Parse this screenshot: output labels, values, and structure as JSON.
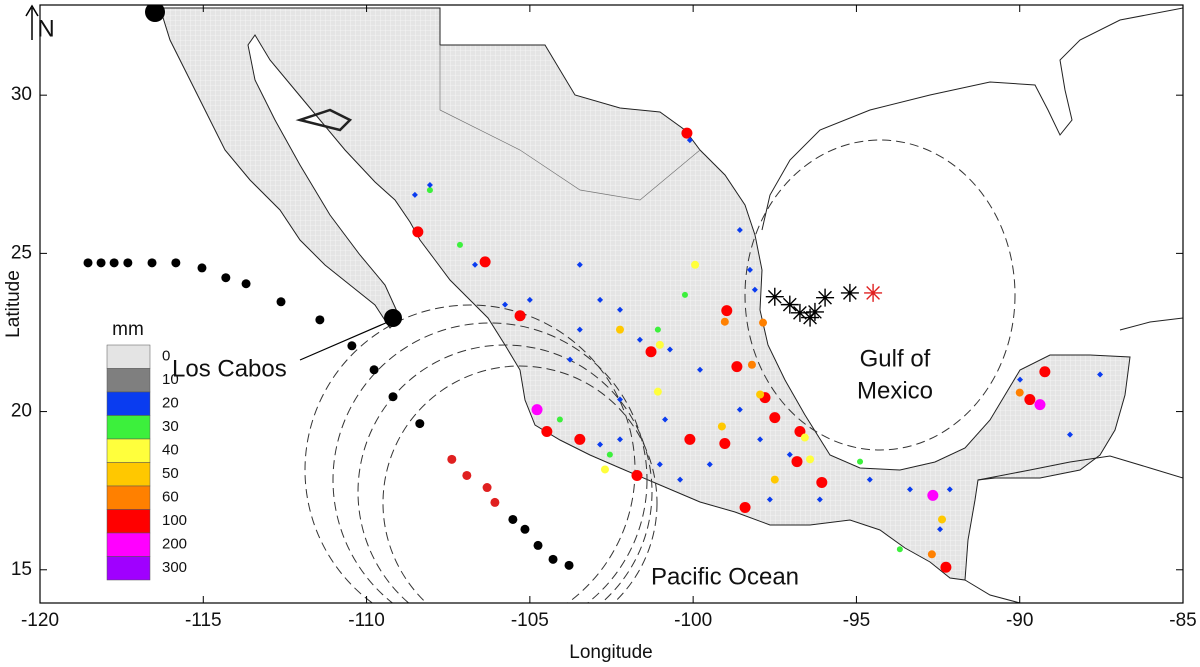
{
  "chart_data": {
    "type": "scatter",
    "x_label": "Longitude",
    "y_label": "Latitude",
    "north": "N",
    "xlim": [
      -120,
      -85
    ],
    "ylim": [
      13.95,
      32.85
    ],
    "xticks": [
      -120,
      -115,
      -110,
      -105,
      -100,
      -95,
      -90,
      -85
    ],
    "yticks": [
      15,
      20,
      25,
      30
    ],
    "legend": {
      "title": "mm",
      "levels": [
        0,
        10,
        20,
        30,
        40,
        50,
        60,
        100,
        200,
        300
      ],
      "colors": [
        "#e4e4e4",
        "#7f7f7f",
        "#0a3cf0",
        "#3cf03c",
        "#ffff3c",
        "#ffc800",
        "#ff8000",
        "#ff0000",
        "#ff00ff",
        "#a000ff"
      ]
    },
    "annotations": {
      "los_cabos": "Los Cabos",
      "gulf": [
        "Gulf of",
        "Mexico"
      ],
      "pacific": "Pacific Ocean"
    },
    "track": {
      "lon": [
        -118.53,
        -118.13,
        -117.73,
        -117.31,
        -116.57,
        -115.84,
        -115.04,
        -114.31,
        -113.69,
        -112.62,
        -111.43,
        -110.45,
        -109.77,
        -109.19,
        -108.37,
        -107.39,
        -106.93,
        -106.31,
        -106.07,
        -105.52,
        -105.15,
        -104.75,
        -104.29,
        -103.8
      ],
      "lat": [
        24.7,
        24.7,
        24.7,
        24.7,
        24.7,
        24.7,
        24.54,
        24.23,
        24.04,
        23.47,
        22.9,
        22.08,
        21.32,
        20.47,
        19.62,
        18.49,
        17.98,
        17.6,
        17.13,
        16.59,
        16.28,
        15.77,
        15.33,
        15.14
      ],
      "colors": [
        "#000000",
        "#000000",
        "#000000",
        "#000000",
        "#000000",
        "#000000",
        "#000000",
        "#000000",
        "#000000",
        "#000000",
        "#000000",
        "#000000",
        "#000000",
        "#000000",
        "#000000",
        "#e02020",
        "#e02020",
        "#e02020",
        "#e02020",
        "#000000",
        "#000000",
        "#000000",
        "#000000",
        "#000000"
      ]
    },
    "gulf_track": {
      "lon": [
        -97.5,
        -97.04,
        -96.73,
        -96.42,
        -96.27,
        -95.96,
        -95.2,
        -94.49
      ],
      "lat": [
        23.63,
        23.38,
        23.12,
        22.97,
        23.15,
        23.6,
        23.75,
        23.75
      ],
      "colors": [
        "#000000",
        "#000000",
        "#000000",
        "#000000",
        "#000000",
        "#000000",
        "#000000",
        "#e02020"
      ]
    },
    "rain": {
      "lon": [
        -108.43,
        -106.37,
        -100.19,
        -105.3,
        -98.97,
        -101.29,
        -98.66,
        -99.03,
        -97.86,
        -104.78,
        -104.48,
        -101.72,
        -97.8,
        -97.5,
        -96.73,
        -96.82,
        -96.06,
        -98.41,
        -92.66,
        -92.26,
        -89.69,
        -89.23,
        -89.38,
        -100.1,
        -103.47,
        -99.03,
        -98.2,
        -99.12,
        -97.5,
        -99.94,
        -101.02,
        -102.24,
        -92.38,
        -92.69,
        -90.0,
        -101.08,
        -104.08,
        -102.55,
        -94.89,
        -93.67,
        -107.14,
        -108.06,
        -96.58,
        -96.42,
        -101.08,
        -97.95,
        -100.25,
        -102.7,
        -108.06,
        -108.52,
        -106.68,
        -105.76,
        -105.0,
        -102.85,
        -102.24,
        -103.47,
        -101.63,
        -100.71,
        -99.79,
        -98.57,
        -98.26,
        -98.11,
        -102.24,
        -102.85,
        -101.02,
        -100.4,
        -99.49,
        -98.57,
        -97.95,
        -97.04,
        -97.65,
        -96.12,
        -94.59,
        -93.36,
        -92.14,
        -92.44,
        -89.99,
        -88.46,
        -87.54,
        -100.1,
        -103.77,
        -103.47,
        -102.24,
        -100.86
      ],
      "lat": [
        25.68,
        24.73,
        28.8,
        23.03,
        23.19,
        21.89,
        21.42,
        22.84,
        22.81,
        20.06,
        19.37,
        17.98,
        20.44,
        19.81,
        19.37,
        18.42,
        17.76,
        16.97,
        17.35,
        15.08,
        20.38,
        21.26,
        20.22,
        19.12,
        19.12,
        18.99,
        21.48,
        19.53,
        17.85,
        24.64,
        22.11,
        22.59,
        16.59,
        15.49,
        20.6,
        22.59,
        19.75,
        18.64,
        18.42,
        15.65,
        25.27,
        27.0,
        19.18,
        18.49,
        20.63,
        20.54,
        23.69,
        18.17,
        27.16,
        26.85,
        24.64,
        23.38,
        23.53,
        23.53,
        23.22,
        24.64,
        22.27,
        21.96,
        21.32,
        25.74,
        24.48,
        23.85,
        19.12,
        18.96,
        18.33,
        17.85,
        18.33,
        20.06,
        19.12,
        18.64,
        17.22,
        17.22,
        17.85,
        17.54,
        17.54,
        16.28,
        21.01,
        19.27,
        21.17,
        28.58,
        21.64,
        22.59,
        20.38,
        19.75
      ],
      "mm": [
        100,
        100,
        100,
        100,
        100,
        100,
        100,
        60,
        60,
        200,
        100,
        100,
        100,
        100,
        100,
        100,
        100,
        100,
        200,
        100,
        100,
        100,
        200,
        100,
        100,
        100,
        60,
        50,
        50,
        40,
        40,
        50,
        50,
        60,
        60,
        30,
        30,
        30,
        30,
        30,
        30,
        30,
        40,
        40,
        40,
        50,
        30,
        40,
        20,
        20,
        20,
        20,
        20,
        20,
        20,
        20,
        20,
        20,
        20,
        20,
        20,
        20,
        20,
        20,
        20,
        20,
        20,
        20,
        20,
        20,
        20,
        20,
        20,
        20,
        20,
        20,
        20,
        20,
        20,
        20,
        20,
        20,
        20,
        20
      ]
    }
  }
}
